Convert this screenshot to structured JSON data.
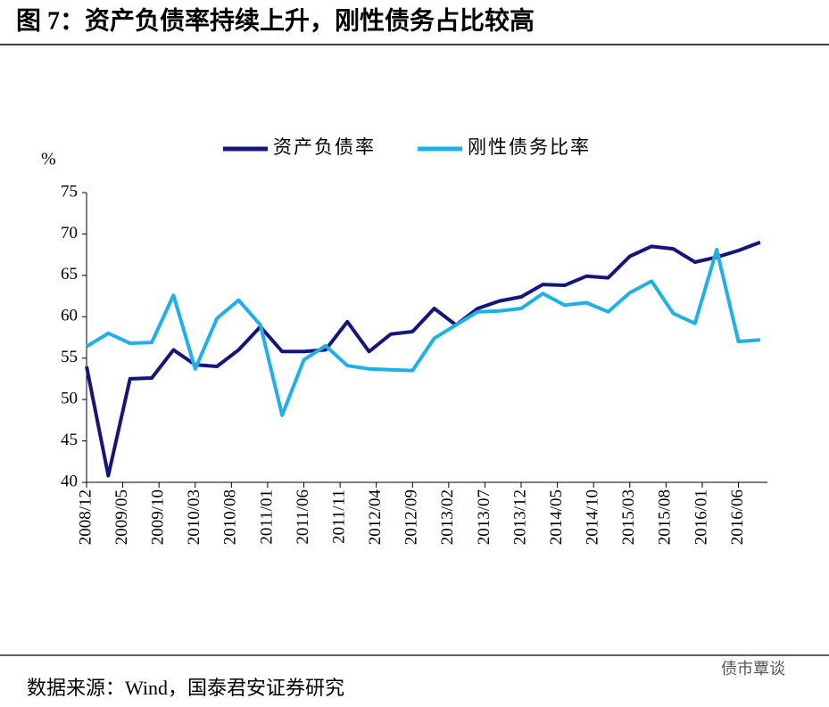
{
  "title": "图 7：资产负债率持续上升，刚性债务占比较高",
  "source": "数据来源：Wind，国泰君安证券研究",
  "watermark": "债市覃谈",
  "chart_data": {
    "type": "line",
    "y_label": "%",
    "x": [
      "2008/12",
      "2009/03",
      "2009/06",
      "2009/09",
      "2009/12",
      "2010/03",
      "2010/06",
      "2010/09",
      "2010/12",
      "2011/03",
      "2011/06",
      "2011/09",
      "2011/12",
      "2012/03",
      "2012/06",
      "2012/09",
      "2012/12",
      "2013/03",
      "2013/06",
      "2013/09",
      "2013/12",
      "2014/03",
      "2014/06",
      "2014/09",
      "2014/12",
      "2015/03",
      "2015/06",
      "2015/09",
      "2015/12",
      "2016/03",
      "2016/06",
      "2016/09"
    ],
    "xlim": [
      "2008/12",
      "2016/10"
    ],
    "xticks": [
      "2008/12",
      "2009/05",
      "2009/10",
      "2010/03",
      "2010/08",
      "2011/01",
      "2011/06",
      "2011/11",
      "2012/04",
      "2012/09",
      "2013/02",
      "2013/07",
      "2013/12",
      "2014/05",
      "2014/10",
      "2015/03",
      "2015/08",
      "2016/01",
      "2016/06"
    ],
    "ylim": [
      40,
      75
    ],
    "yticks": [
      40,
      45,
      50,
      55,
      60,
      65,
      70,
      75
    ],
    "grid": false,
    "legend": "top",
    "series": [
      {
        "name": "资产负债率",
        "color": "#16167a",
        "values": [
          54.0,
          40.8,
          52.5,
          52.6,
          56.0,
          54.2,
          54.0,
          56.0,
          58.8,
          55.8,
          55.8,
          56.0,
          59.4,
          55.8,
          57.9,
          58.2,
          61.0,
          59.0,
          61.0,
          61.9,
          62.4,
          63.9,
          63.8,
          64.9,
          64.7,
          67.3,
          68.5,
          68.2,
          66.6,
          67.2,
          68.0,
          69.0
        ]
      },
      {
        "name": "刚性债务比率",
        "color": "#1eb0e6",
        "values": [
          56.4,
          58.0,
          56.8,
          56.9,
          62.6,
          53.7,
          59.8,
          62.0,
          59.0,
          48.1,
          54.8,
          56.5,
          54.1,
          53.7,
          53.6,
          53.5,
          57.4,
          59.0,
          60.6,
          60.7,
          61.0,
          62.8,
          61.4,
          61.7,
          60.6,
          62.9,
          64.3,
          60.4,
          59.2,
          68.1,
          57.0,
          57.2
        ]
      }
    ]
  }
}
